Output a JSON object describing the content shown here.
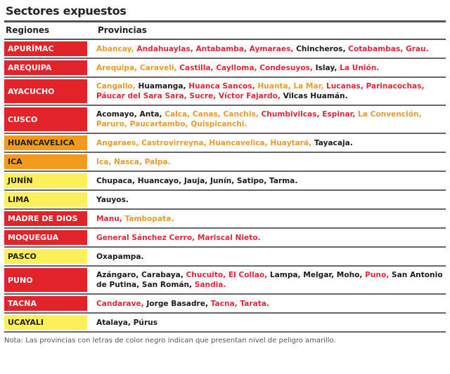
{
  "title": "Sectores expuestos",
  "headers": {
    "regions": "Regiones",
    "provinces": "Provincias"
  },
  "colors": {
    "red": "#e2242a",
    "orange": "#f39a1d",
    "yellow": "#fbef5a",
    "black_text": "#1a1a1a"
  },
  "rows": [
    {
      "region": "APURÍMAC",
      "level": "r",
      "provinces": [
        [
          "Abancay, ",
          "o"
        ],
        [
          "Andahuaylas, ",
          "r"
        ],
        [
          "Antabamba, ",
          "r"
        ],
        [
          "Aymaraes, ",
          "r"
        ],
        [
          "Chincheros, ",
          "k"
        ],
        [
          "Cotabambas, ",
          "r"
        ],
        [
          "Grau.",
          "r"
        ]
      ]
    },
    {
      "region": "AREQUIPA",
      "level": "r",
      "provinces": [
        [
          "Arequipa, ",
          "o"
        ],
        [
          "Caraveli, ",
          "o"
        ],
        [
          "Castilla, ",
          "r"
        ],
        [
          "Caylloma, ",
          "r"
        ],
        [
          "Condesuyos, ",
          "r"
        ],
        [
          "Islay, ",
          "k"
        ],
        [
          "La Unión.",
          "r"
        ]
      ]
    },
    {
      "region": "AYACUCHO",
      "level": "r",
      "provinces": [
        [
          "Cangallo, ",
          "o"
        ],
        [
          "Huamanga, ",
          "k"
        ],
        [
          "Huanca Sancos, ",
          "r"
        ],
        [
          "Huanta, ",
          "o"
        ],
        [
          "La Mar, ",
          "o"
        ],
        [
          "Lucanas, ",
          "r"
        ],
        [
          "Parinacochas, ",
          "r"
        ],
        [
          "Páucar del Sara Sara, ",
          "r"
        ],
        [
          "Sucre, ",
          "r"
        ],
        [
          "Víctor Fajardo, ",
          "r"
        ],
        [
          "Vilcas Huamán.",
          "k"
        ]
      ]
    },
    {
      "region": "CUSCO",
      "level": "r",
      "provinces": [
        [
          "Acomayo, ",
          "k"
        ],
        [
          "Anta, ",
          "k"
        ],
        [
          "Calca, ",
          "o"
        ],
        [
          "Canas, ",
          "o"
        ],
        [
          "Canchis, ",
          "o"
        ],
        [
          "Chumbivilcas, ",
          "r"
        ],
        [
          "Espinar, ",
          "r"
        ],
        [
          "La Convención, ",
          "o"
        ],
        [
          "Paruro, ",
          "o"
        ],
        [
          "Paucartambo, ",
          "o"
        ],
        [
          "Quispicanchi.",
          "o"
        ]
      ]
    },
    {
      "region": "HUANCAVELICA",
      "level": "o",
      "provinces": [
        [
          "Angaraes, ",
          "o"
        ],
        [
          "Castrovirreyna, ",
          "o"
        ],
        [
          "Huancavelica, ",
          "o"
        ],
        [
          "Huaytará, ",
          "o"
        ],
        [
          "Tayacaja.",
          "k"
        ]
      ]
    },
    {
      "region": "ICA",
      "level": "o",
      "provinces": [
        [
          "Ica, ",
          "o"
        ],
        [
          "Nasca, ",
          "o"
        ],
        [
          "Palpa.",
          "o"
        ]
      ]
    },
    {
      "region": "JUNÍN",
      "level": "y",
      "provinces": [
        [
          "Chupaca, Huancayo, Jauja, Junín, Satipo, Tarma.",
          "k"
        ]
      ]
    },
    {
      "region": "LIMA",
      "level": "y",
      "provinces": [
        [
          "Yauyos.",
          "k"
        ]
      ]
    },
    {
      "region": "MADRE DE DIOS",
      "level": "r",
      "provinces": [
        [
          "Manu, ",
          "r"
        ],
        [
          "Tambopata.",
          "o"
        ]
      ]
    },
    {
      "region": "MOQUEGUA",
      "level": "r",
      "provinces": [
        [
          "General Sánchez Cerro, ",
          "r"
        ],
        [
          "Mariscal Nieto.",
          "r"
        ]
      ]
    },
    {
      "region": "PASCO",
      "level": "y",
      "provinces": [
        [
          "Oxapampa.",
          "k"
        ]
      ]
    },
    {
      "region": "PUNO",
      "level": "r",
      "provinces": [
        [
          "Azángaro, ",
          "k"
        ],
        [
          "Carabaya, ",
          "k"
        ],
        [
          "Chucuito, ",
          "r"
        ],
        [
          "El Collao, ",
          "r"
        ],
        [
          "Lampa, ",
          "k"
        ],
        [
          "Melgar, ",
          "k"
        ],
        [
          "Moho, ",
          "k"
        ],
        [
          "Puno, ",
          "r"
        ],
        [
          "San Antonio de Putina, ",
          "k"
        ],
        [
          "San Román, ",
          "k"
        ],
        [
          "Sandia.",
          "r"
        ]
      ]
    },
    {
      "region": "TACNA",
      "level": "r",
      "provinces": [
        [
          "Candarave, ",
          "r"
        ],
        [
          "Jorge Basadre, ",
          "k"
        ],
        [
          "Tacna, ",
          "r"
        ],
        [
          "Tarata.",
          "r"
        ]
      ]
    },
    {
      "region": "UCAYALI",
      "level": "y",
      "provinces": [
        [
          "Atalaya, Púrus",
          "k"
        ]
      ]
    }
  ],
  "note": "Nota: Las provincias con letras de color negro indican que presentan nivel de peligro amarillo."
}
